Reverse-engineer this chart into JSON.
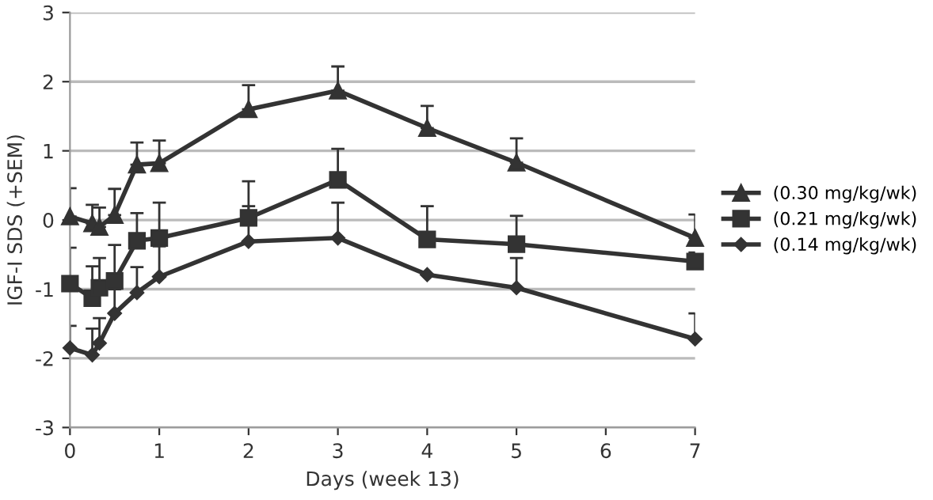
{
  "chart_data": {
    "type": "line",
    "ylabel": "IGF-I SDS (+SEM)",
    "xlabel": "Days (week 13)",
    "x": [
      0,
      0.25,
      0.33,
      0.5,
      0.75,
      1,
      2,
      3,
      4,
      5,
      7
    ],
    "series": [
      {
        "name": "(0.30 mg/kg/wk)",
        "color": "#333333",
        "marker": "triangle",
        "values": [
          0.05,
          -0.05,
          -0.1,
          0.07,
          0.8,
          0.82,
          1.6,
          1.87,
          1.33,
          0.83,
          -0.26
        ],
        "errors": [
          [
            0.05,
            0.46
          ],
          [
            -0.05,
            0.22
          ],
          [
            -0.1,
            0.18
          ],
          [
            0.07,
            0.45
          ],
          [
            0.8,
            1.12
          ],
          [
            0.82,
            1.15
          ],
          [
            1.6,
            1.95
          ],
          [
            1.87,
            2.22
          ],
          [
            1.33,
            1.65
          ],
          [
            0.83,
            1.18
          ],
          [
            -0.26,
            0.08
          ]
        ]
      },
      {
        "name": "(0.21 mg/kg/wk)",
        "color": "#333333",
        "marker": "square",
        "values": [
          -0.92,
          -1.13,
          -0.98,
          -0.88,
          -0.3,
          -0.26,
          0.03,
          0.58,
          -0.28,
          -0.35,
          -0.6
        ],
        "errors": [
          [
            -0.92,
            -0.4
          ],
          [
            -1.13,
            -0.67
          ],
          [
            -0.98,
            -0.55
          ],
          [
            -0.88,
            -0.36
          ],
          [
            -0.3,
            0.1
          ],
          [
            -0.26,
            0.25
          ],
          [
            0.03,
            0.56
          ],
          [
            0.58,
            1.03
          ],
          [
            -0.28,
            0.2
          ],
          [
            -0.35,
            0.06
          ],
          [
            -0.6,
            -0.47
          ]
        ]
      },
      {
        "name": "(0.14 mg/kg/wk)",
        "color": "#333333",
        "marker": "diamond",
        "values": [
          -1.85,
          -1.95,
          -1.78,
          -1.35,
          -1.05,
          -0.82,
          -0.31,
          -0.26,
          -0.79,
          -0.98,
          -1.72
        ],
        "errors": [
          [
            -1.85,
            -1.53
          ],
          [
            -1.95,
            -1.57
          ],
          [
            -1.78,
            -1.42
          ],
          [
            -1.35,
            -1.0
          ],
          [
            -1.05,
            -0.68
          ],
          [
            -0.82,
            -0.38
          ],
          [
            -0.31,
            0.2
          ],
          [
            -0.26,
            0.25
          ],
          null,
          [
            -0.98,
            -0.55
          ],
          [
            -1.72,
            -1.35
          ]
        ]
      }
    ],
    "xlim": [
      0,
      7
    ],
    "xticks": [
      0,
      1,
      2,
      3,
      4,
      5,
      6,
      7
    ],
    "ylim": [
      -3,
      3
    ],
    "yticks": [
      -3,
      -2,
      -1,
      0,
      1,
      2,
      3
    ],
    "grid": "y",
    "legend": "right"
  }
}
